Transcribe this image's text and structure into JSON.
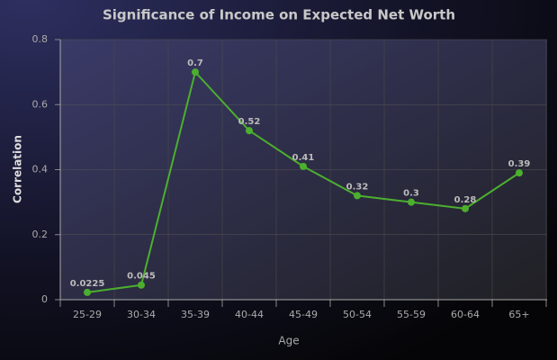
{
  "chart_data": {
    "type": "line",
    "title": "Significance of Income on Expected Net Worth",
    "x_label": "Age",
    "y_label": "Correlation",
    "categories": [
      "25-29",
      "30-34",
      "35-39",
      "40-44",
      "45-49",
      "50-54",
      "55-59",
      "60-64",
      "65+"
    ],
    "series": [
      {
        "name": "Correlation",
        "color": "#4caf2e",
        "values": [
          0.0225,
          0.045,
          0.7,
          0.52,
          0.41,
          0.32,
          0.3,
          0.28,
          0.39
        ]
      }
    ],
    "ylim": [
      0,
      0.8
    ],
    "yticks": [
      0,
      0.2,
      0.4,
      0.6,
      0.8
    ],
    "grid": true
  }
}
